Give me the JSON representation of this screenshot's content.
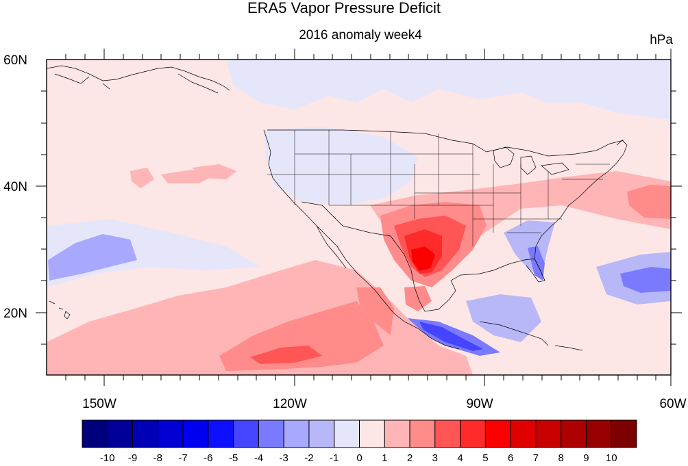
{
  "title": "ERA5 Vapor Pressure Deficit",
  "subtitle": "2016 anomaly week4",
  "units": "hPa",
  "lat_labels": [
    "60N",
    "40N",
    "20N"
  ],
  "lon_labels": [
    "150W",
    "120W",
    "90W",
    "60W"
  ],
  "colorbar": {
    "labels": [
      "-10",
      "-9",
      "-8",
      "-7",
      "-6",
      "-5",
      "-4",
      "-3",
      "-2",
      "-1",
      "0",
      "1",
      "2",
      "3",
      "4",
      "5",
      "6",
      "7",
      "8",
      "9",
      "10"
    ],
    "colors": [
      "#00007c",
      "#000099",
      "#0000b6",
      "#0000d3",
      "#0000f0",
      "#0f0fff",
      "#4545ff",
      "#7a7aff",
      "#a8a8ff",
      "#b8b8f8",
      "#e6e6fb",
      "#fde6e6",
      "#ffb5b5",
      "#ff8b8b",
      "#ff5555",
      "#ff2a2a",
      "#fa0000",
      "#e00000",
      "#c80000",
      "#ad0000",
      "#960000",
      "#7c0000"
    ]
  },
  "map": {
    "background_color": "#fde6e6",
    "lon_range": [
      -160,
      -60
    ],
    "lat_range": [
      10,
      60
    ]
  }
}
